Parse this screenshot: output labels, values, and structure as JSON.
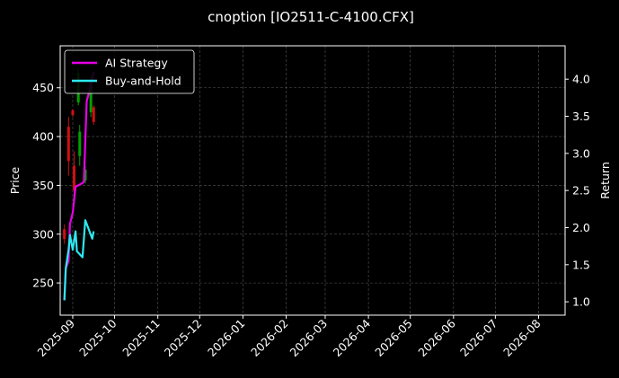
{
  "chart_data": {
    "type": "line",
    "title": "cnoption [IO2511-C-4100.CFX]",
    "xlabel": "",
    "ylabel_left": "Price",
    "ylabel_right": "Return",
    "x_range": [
      "2025-08-23",
      "2026-08-20"
    ],
    "ylim_left": [
      217,
      493
    ],
    "ylim_right": [
      0.82,
      4.45
    ],
    "x_ticks": [
      "2025-09",
      "2025-10",
      "2025-11",
      "2025-12",
      "2026-01",
      "2026-02",
      "2026-03",
      "2026-04",
      "2026-05",
      "2026-06",
      "2026-07",
      "2026-08"
    ],
    "y_ticks_left": [
      250,
      300,
      350,
      400,
      450
    ],
    "y_ticks_right": [
      1.0,
      1.5,
      2.0,
      2.5,
      3.0,
      3.5,
      4.0
    ],
    "grid": true,
    "legend_position": "top-left",
    "series": [
      {
        "name": "AI Strategy",
        "axis": "right",
        "color": "#e600e6",
        "points": [
          [
            "2025-08-26",
            1.02
          ],
          [
            "2025-08-27",
            1.45
          ],
          [
            "2025-08-29",
            1.55
          ],
          [
            "2025-08-30",
            2.05
          ],
          [
            "2025-09-01",
            2.2
          ],
          [
            "2025-09-03",
            2.55
          ],
          [
            "2025-09-08",
            2.6
          ],
          [
            "2025-09-09",
            2.62
          ],
          [
            "2025-09-11",
            3.7
          ],
          [
            "2025-09-15",
            4.0
          ],
          [
            "2025-09-16",
            4.1
          ]
        ]
      },
      {
        "name": "Buy-and-Hold",
        "axis": "right",
        "color": "#2de8f0",
        "points": [
          [
            "2025-08-26",
            1.02
          ],
          [
            "2025-08-27",
            1.45
          ],
          [
            "2025-08-29",
            1.7
          ],
          [
            "2025-08-30",
            1.9
          ],
          [
            "2025-09-01",
            1.7
          ],
          [
            "2025-09-03",
            1.95
          ],
          [
            "2025-09-04",
            1.68
          ],
          [
            "2025-09-08",
            1.6
          ],
          [
            "2025-09-10",
            2.1
          ],
          [
            "2025-09-15",
            1.85
          ],
          [
            "2025-09-16",
            1.95
          ]
        ]
      }
    ],
    "candles": [
      {
        "date": "2025-08-26",
        "low": 290,
        "high": 310,
        "open": 305,
        "close": 295,
        "up": false
      },
      {
        "date": "2025-08-29",
        "low": 360,
        "high": 420,
        "open": 410,
        "close": 375,
        "up": false
      },
      {
        "date": "2025-09-01",
        "low": 420,
        "high": 428,
        "open": 427,
        "close": 422,
        "up": false
      },
      {
        "date": "2025-09-02",
        "low": 330,
        "high": 385,
        "open": 370,
        "close": 345,
        "up": false
      },
      {
        "date": "2025-09-05",
        "low": 432,
        "high": 470,
        "open": 435,
        "close": 465,
        "up": true
      },
      {
        "date": "2025-09-06",
        "low": 370,
        "high": 412,
        "open": 380,
        "close": 405,
        "up": true
      },
      {
        "date": "2025-09-10",
        "low": 352,
        "high": 370,
        "open": 355,
        "close": 366,
        "up": true
      },
      {
        "date": "2025-09-14",
        "low": 420,
        "high": 462,
        "open": 425,
        "close": 455,
        "up": true
      },
      {
        "date": "2025-09-16",
        "low": 412,
        "high": 432,
        "open": 430,
        "close": 415,
        "up": false
      }
    ],
    "colors": {
      "up": "#00a000",
      "down": "#d01010",
      "grid": "#555555",
      "axes": "#ffffff"
    }
  }
}
